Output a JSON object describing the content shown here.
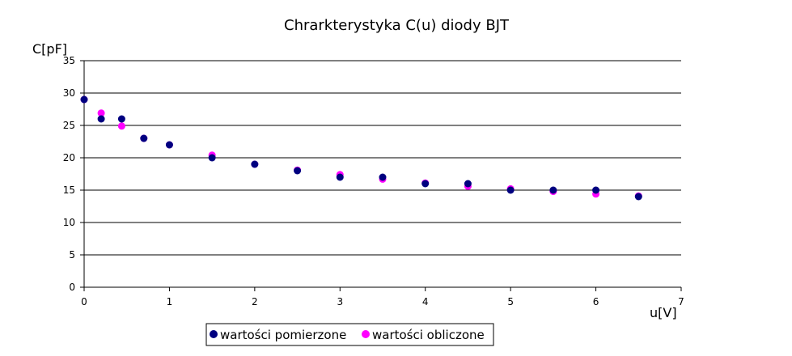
{
  "chart_data": {
    "type": "scatter",
    "title": "Chrarkterystyka C(u) diody BJT",
    "xlabel": "u[V]",
    "ylabel": "C[pF]",
    "xlim": [
      0,
      7
    ],
    "ylim": [
      0,
      35
    ],
    "x_ticks": [
      "0",
      "1",
      "2",
      "3",
      "4",
      "5",
      "6",
      "7"
    ],
    "y_ticks": [
      "0",
      "5",
      "10",
      "15",
      "20",
      "25",
      "30",
      "35"
    ],
    "grid": "horizontal",
    "legend_position": "bottom",
    "series": [
      {
        "name": "wartości pomierzone",
        "color": "#000080",
        "points": [
          [
            0,
            29
          ],
          [
            0.2,
            26
          ],
          [
            0.44,
            26
          ],
          [
            0.7,
            23
          ],
          [
            1,
            22
          ],
          [
            1.5,
            20
          ],
          [
            2,
            19
          ],
          [
            2.5,
            18
          ],
          [
            3,
            17
          ],
          [
            3.5,
            17
          ],
          [
            4,
            16
          ],
          [
            4.5,
            16
          ],
          [
            5,
            15
          ],
          [
            5.5,
            15
          ],
          [
            6,
            15
          ],
          [
            6.5,
            14
          ]
        ]
      },
      {
        "name": "wartości obliczone",
        "color": "#ff00ff",
        "points": [
          [
            0,
            29
          ],
          [
            0.2,
            26.9
          ],
          [
            0.44,
            24.9
          ],
          [
            0.7,
            23
          ],
          [
            1,
            22
          ],
          [
            1.5,
            20.4
          ],
          [
            2,
            19
          ],
          [
            2.5,
            18.1
          ],
          [
            3,
            17.4
          ],
          [
            3.5,
            16.7
          ],
          [
            4,
            16.1
          ],
          [
            4.5,
            15.6
          ],
          [
            5,
            15.2
          ],
          [
            5.5,
            14.8
          ],
          [
            6,
            14.4
          ],
          [
            6.5,
            14.1
          ]
        ]
      }
    ]
  }
}
